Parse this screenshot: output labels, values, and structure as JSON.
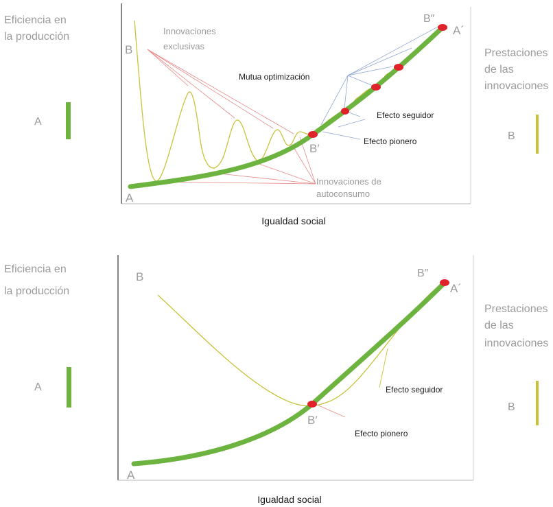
{
  "colors": {
    "curve_a": "#6db33f",
    "curve_b": "#c8c23a",
    "marker": "#e0232a",
    "axis": "#333333",
    "grey_text": "#9b9b9b",
    "red_leader": "#e88a8a",
    "blue_leader": "#8fa6cf"
  },
  "top": {
    "left_axis_label_line1": "Eficiencia en",
    "left_axis_label_line2": "la producción",
    "left_legend_letter": "A",
    "right_axis_label_line1": "Prestaciones",
    "right_axis_label_line2": "de las",
    "right_axis_label_line3": "innovaciones",
    "right_legend_letter": "B",
    "x_axis_label": "Igualdad social",
    "point_a_start": "A",
    "point_b_start": "B",
    "point_b_double_prime": "B″",
    "point_a_prime": "A´",
    "point_b_prime": "B′",
    "annot_exclusive_line1": "Innovaciones",
    "annot_exclusive_line2": "exclusivas",
    "annot_mutual": "Mutua optimización",
    "annot_follower": "Efecto seguidor",
    "annot_pioneer": "Efecto pionero",
    "annot_selfcons_line1": "Innovaciones de",
    "annot_selfcons_line2": "autoconsumo"
  },
  "bottom": {
    "left_axis_label_line1": "Eficiencia en",
    "left_axis_label_line2": "la producción",
    "left_legend_letter": "A",
    "right_axis_label_line1": "Prestaciones",
    "right_axis_label_line2": "de las",
    "right_axis_label_line3": "innovaciones",
    "right_legend_letter": "B",
    "x_axis_label": "Igualdad social",
    "point_a_start": "A",
    "point_b_start": "B",
    "point_b_double_prime": "B″",
    "point_a_prime": "A´",
    "point_b_prime": "B′",
    "annot_follower": "Efecto seguidor",
    "annot_pioneer": "Efecto pionero"
  }
}
